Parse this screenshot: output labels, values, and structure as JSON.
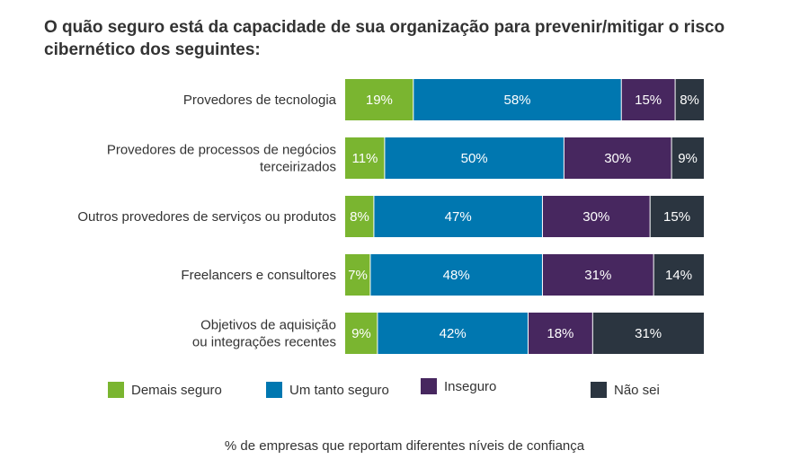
{
  "chart_data": {
    "type": "bar",
    "orientation": "horizontal",
    "stacked": true,
    "title": "O quão seguro está da capacidade de sua organização para prevenir/mitigar o risco cibernético dos seguintes:",
    "footnote": "% de empresas que reportam diferentes níveis de confiança",
    "xlim": [
      0,
      100
    ],
    "categories": [
      [
        "Provedores de tecnologia"
      ],
      [
        "Provedores de processos de negócios",
        "terceirizados"
      ],
      [
        "Outros provedores de serviços ou produtos"
      ],
      [
        "Freelancers e consultores"
      ],
      [
        "Objetivos de aquisição",
        "ou integrações recentes"
      ]
    ],
    "series": [
      {
        "name": "Demais seguro",
        "color": "#7ab530",
        "text_color": "#ffffff",
        "values": [
          19,
          11,
          8,
          7,
          9
        ]
      },
      {
        "name": "Um tanto seguro",
        "color": "#0077b0",
        "text_color": "#ffffff",
        "values": [
          58,
          50,
          47,
          48,
          42
        ]
      },
      {
        "name": "Inseguro",
        "color": "#47275f",
        "text_color": "#ffffff",
        "values": [
          15,
          30,
          30,
          31,
          18
        ]
      },
      {
        "name": "Não sei",
        "color": "#2b3540",
        "text_color": "#ffffff",
        "values": [
          8,
          9,
          15,
          14,
          31
        ]
      }
    ],
    "value_suffix": "%",
    "legend": "bottom"
  }
}
